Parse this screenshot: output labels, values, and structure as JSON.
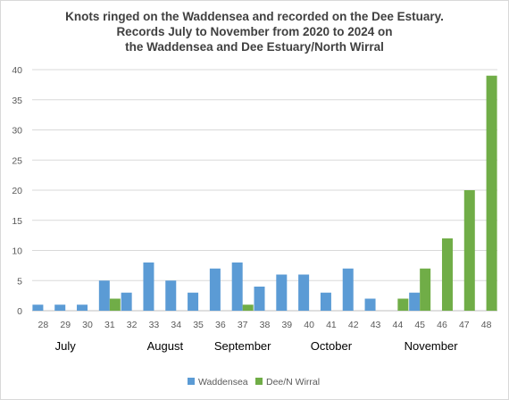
{
  "chart_data": {
    "type": "bar",
    "title": [
      "Knots ringed on the Waddensea and recorded on the Dee Estuary.",
      "Records July to November from 2020 to 2024 on",
      "the Waddensea and Dee Estuary/North Wirral"
    ],
    "xlabel": "",
    "ylabel": "",
    "categories": [
      "28",
      "29",
      "30",
      "31",
      "32",
      "33",
      "34",
      "35",
      "36",
      "37",
      "38",
      "39",
      "40",
      "41",
      "42",
      "43",
      "44",
      "45",
      "46",
      "47",
      "48"
    ],
    "series": [
      {
        "name": "Waddensea",
        "color": "#5b9bd5",
        "values": [
          1,
          1,
          1,
          5,
          3,
          8,
          5,
          3,
          7,
          8,
          4,
          6,
          6,
          3,
          7,
          2,
          0,
          3,
          0,
          0,
          0
        ]
      },
      {
        "name": "Dee/N Wirral",
        "color": "#70ad47",
        "values": [
          0,
          0,
          0,
          2,
          0,
          0,
          0,
          0,
          0,
          1,
          0,
          0,
          0,
          0,
          0,
          0,
          2,
          7,
          12,
          20,
          39
        ]
      }
    ],
    "ylim": [
      0,
      40
    ],
    "yticks": [
      0,
      5,
      10,
      15,
      20,
      25,
      30,
      35,
      40
    ],
    "grid": true,
    "legend_position": "bottom",
    "month_labels": [
      {
        "label": "July",
        "category": "29"
      },
      {
        "label": "August",
        "category": "33.5"
      },
      {
        "label": "September",
        "category": "37"
      },
      {
        "label": "October",
        "category": "41"
      },
      {
        "label": "November",
        "category": "45.5"
      }
    ]
  }
}
